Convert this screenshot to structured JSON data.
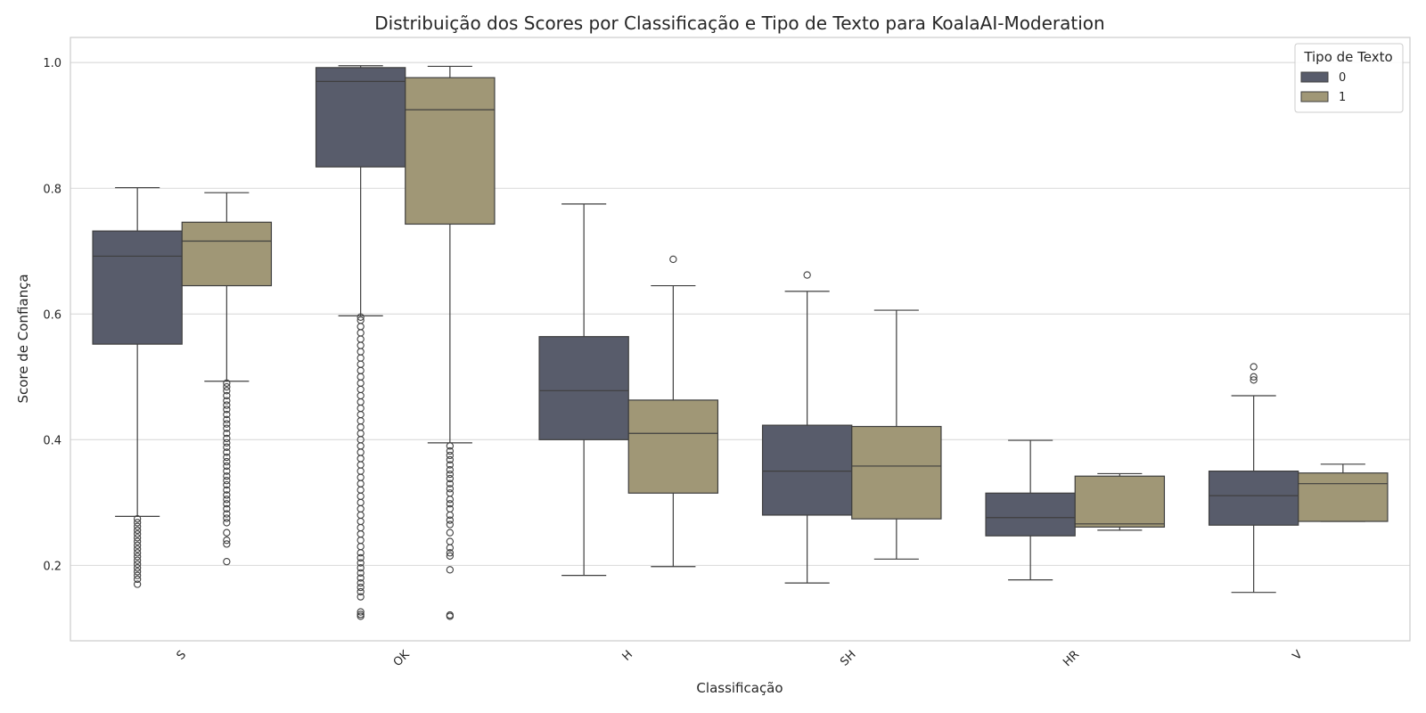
{
  "chart_data": {
    "type": "box",
    "title": "Distribuição dos Scores por Classificação e Tipo de Texto para KoalaAI-Moderation",
    "xlabel": "Classificação",
    "ylabel": "Score de Confiança",
    "ylim": [
      0.08,
      1.04
    ],
    "yticks": [
      "0.2",
      "0.4",
      "0.6",
      "0.8",
      "1.0"
    ],
    "categories": [
      "S",
      "OK",
      "H",
      "SH",
      "HR",
      "V"
    ],
    "grid": "horizontal",
    "legend": {
      "title": "Tipo de Texto",
      "placement": "top-right"
    },
    "series": [
      {
        "name": "0",
        "color": "#585c6b",
        "boxes": [
          {
            "whislo": 0.278,
            "q1": 0.552,
            "med": 0.692,
            "q3": 0.732,
            "whishi": 0.801,
            "fliers": [
              0.17,
              0.178,
              0.184,
              0.19,
              0.196,
              0.202,
              0.208,
              0.214,
              0.22,
              0.226,
              0.232,
              0.238,
              0.244,
              0.25,
              0.256,
              0.262,
              0.268,
              0.274
            ]
          },
          {
            "whislo": 0.597,
            "q1": 0.834,
            "med": 0.97,
            "q3": 0.992,
            "whishi": 0.995,
            "fliers": [
              0.119,
              0.122,
              0.126,
              0.15,
              0.158,
              0.165,
              0.172,
              0.18,
              0.188,
              0.196,
              0.204,
              0.212,
              0.22,
              0.23,
              0.24,
              0.25,
              0.26,
              0.27,
              0.28,
              0.29,
              0.3,
              0.31,
              0.32,
              0.33,
              0.34,
              0.35,
              0.36,
              0.37,
              0.38,
              0.39,
              0.4,
              0.41,
              0.42,
              0.43,
              0.44,
              0.45,
              0.46,
              0.47,
              0.48,
              0.49,
              0.5,
              0.51,
              0.52,
              0.53,
              0.54,
              0.55,
              0.56,
              0.57,
              0.58,
              0.59,
              0.595
            ]
          },
          {
            "whislo": 0.184,
            "q1": 0.4,
            "med": 0.478,
            "q3": 0.564,
            "whishi": 0.775,
            "fliers": []
          },
          {
            "whislo": 0.172,
            "q1": 0.28,
            "med": 0.35,
            "q3": 0.423,
            "whishi": 0.636,
            "fliers": [
              0.662
            ]
          },
          {
            "whislo": 0.177,
            "q1": 0.247,
            "med": 0.276,
            "q3": 0.315,
            "whishi": 0.399,
            "fliers": []
          },
          {
            "whislo": 0.157,
            "q1": 0.264,
            "med": 0.311,
            "q3": 0.35,
            "whishi": 0.47,
            "fliers": [
              0.495,
              0.5,
              0.516
            ]
          }
        ]
      },
      {
        "name": "1",
        "color": "#a09776",
        "boxes": [
          {
            "whislo": 0.493,
            "q1": 0.645,
            "med": 0.716,
            "q3": 0.746,
            "whishi": 0.793,
            "fliers": [
              0.206,
              0.234,
              0.24,
              0.252,
              0.268,
              0.275,
              0.282,
              0.29,
              0.298,
              0.305,
              0.312,
              0.32,
              0.328,
              0.335,
              0.342,
              0.35,
              0.358,
              0.365,
              0.372,
              0.38,
              0.388,
              0.395,
              0.402,
              0.41,
              0.418,
              0.425,
              0.432,
              0.44,
              0.448,
              0.455,
              0.462,
              0.47,
              0.478,
              0.484,
              0.49
            ]
          },
          {
            "whislo": 0.395,
            "q1": 0.743,
            "med": 0.925,
            "q3": 0.976,
            "whishi": 0.994,
            "fliers": [
              0.119,
              0.121,
              0.193,
              0.215,
              0.22,
              0.228,
              0.238,
              0.252,
              0.265,
              0.272,
              0.28,
              0.29,
              0.298,
              0.305,
              0.315,
              0.322,
              0.33,
              0.338,
              0.345,
              0.352,
              0.36,
              0.368,
              0.375,
              0.382,
              0.39
            ]
          },
          {
            "whislo": 0.198,
            "q1": 0.315,
            "med": 0.41,
            "q3": 0.463,
            "whishi": 0.645,
            "fliers": [
              0.687
            ]
          },
          {
            "whislo": 0.21,
            "q1": 0.274,
            "med": 0.358,
            "q3": 0.421,
            "whishi": 0.606,
            "fliers": []
          },
          {
            "whislo": 0.256,
            "q1": 0.261,
            "med": 0.266,
            "q3": 0.342,
            "whishi": 0.346,
            "fliers": []
          },
          {
            "whislo": 0.27,
            "q1": 0.27,
            "med": 0.33,
            "q3": 0.347,
            "whishi": 0.361,
            "fliers": []
          }
        ]
      }
    ]
  }
}
